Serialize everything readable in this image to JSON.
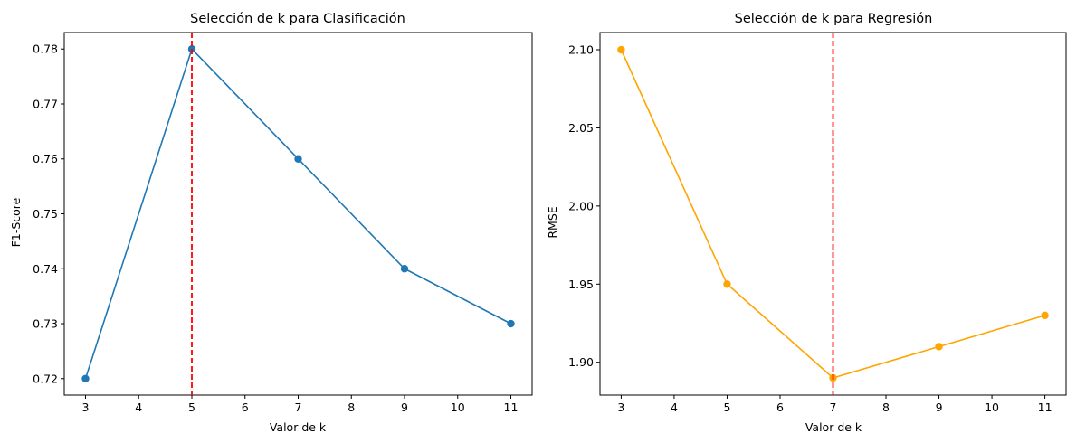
{
  "chart_data": [
    {
      "type": "line",
      "title": "Selección de k para Clasificación",
      "xlabel": "Valor de k",
      "ylabel": "F1-Score",
      "x": [
        3,
        5,
        7,
        9,
        11
      ],
      "series": [
        {
          "values": [
            0.72,
            0.78,
            0.76,
            0.74,
            0.73
          ],
          "color": "#1f77b4",
          "marker": "circle"
        }
      ],
      "vline": {
        "x": 5,
        "color": "#ff0000",
        "style": "dashed"
      },
      "xlim": [
        2.6,
        11.4
      ],
      "ylim": [
        0.717,
        0.783
      ],
      "xticks": [
        3,
        4,
        5,
        6,
        7,
        8,
        9,
        10,
        11
      ],
      "xtick_labels": [
        "3",
        "4",
        "5",
        "6",
        "7",
        "8",
        "9",
        "10",
        "11"
      ],
      "yticks": [
        0.72,
        0.73,
        0.74,
        0.75,
        0.76,
        0.77,
        0.78
      ],
      "ytick_labels": [
        "0.72",
        "0.73",
        "0.74",
        "0.75",
        "0.76",
        "0.77",
        "0.78"
      ],
      "grid": false
    },
    {
      "type": "line",
      "title": "Selección de k para Regresión",
      "xlabel": "Valor de k",
      "ylabel": "RMSE",
      "x": [
        3,
        5,
        7,
        9,
        11
      ],
      "series": [
        {
          "values": [
            2.1,
            1.95,
            1.89,
            1.91,
            1.93
          ],
          "color": "#ffa500",
          "marker": "circle"
        }
      ],
      "vline": {
        "x": 7,
        "color": "#ff0000",
        "style": "dashed"
      },
      "xlim": [
        2.6,
        11.4
      ],
      "ylim": [
        1.879,
        2.111
      ],
      "xticks": [
        3,
        4,
        5,
        6,
        7,
        8,
        9,
        10,
        11
      ],
      "xtick_labels": [
        "3",
        "4",
        "5",
        "6",
        "7",
        "8",
        "9",
        "10",
        "11"
      ],
      "yticks": [
        1.9,
        1.95,
        2.0,
        2.05,
        2.1
      ],
      "ytick_labels": [
        "1.90",
        "1.95",
        "2.00",
        "2.05",
        "2.10"
      ],
      "grid": false
    }
  ]
}
